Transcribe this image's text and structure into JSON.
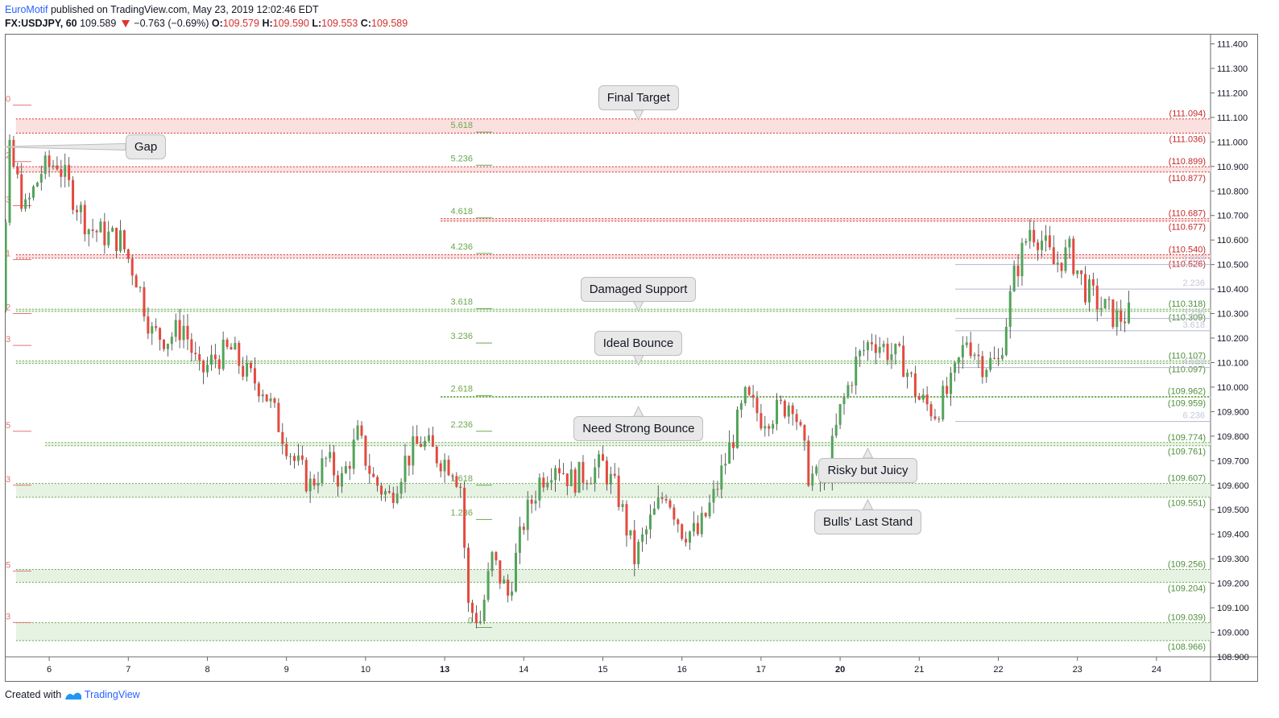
{
  "header": {
    "author": "EuroMotif",
    "published_text": "published on TradingView.com, May 23, 2019 12:02:46 EDT",
    "symbol": "FX:USDJPY, 60",
    "price": "109.589",
    "change": "−0.763 (−0.69%)",
    "open_label": "O:",
    "open": "109.579",
    "high_label": "H:",
    "high": "109.590",
    "low_label": "L:",
    "low": "109.553",
    "close_label": "C:",
    "close": "109.589"
  },
  "footer": {
    "created_with": "Created with",
    "brand": "TradingView"
  },
  "colors": {
    "up": "#53a35a",
    "down": "#e34a3f",
    "red_zone": "#fbe0e0",
    "green_zone": "#e6f3e3",
    "red_line": "#d43232",
    "green_line": "#6aa84f",
    "fib_text": "#6aa84f",
    "grey_fib": "#b5b5cf"
  },
  "chart_data": {
    "type": "candlestick",
    "instrument": "FX:USDJPY",
    "timeframe": "60",
    "ylim": [
      108.9,
      111.4
    ],
    "y_ticks": [
      "111.400",
      "111.300",
      "111.200",
      "111.100",
      "111.000",
      "110.900",
      "110.800",
      "110.700",
      "110.600",
      "110.500",
      "110.400",
      "110.300",
      "110.200",
      "110.100",
      "110.000",
      "109.900",
      "109.800",
      "109.700",
      "109.600",
      "109.500",
      "109.400",
      "109.300",
      "109.200",
      "109.100",
      "109.000",
      "108.900"
    ],
    "x_ticks": [
      {
        "label": "6",
        "x": 0.5,
        "bold": false
      },
      {
        "label": "7",
        "x": 1.5,
        "bold": false
      },
      {
        "label": "8",
        "x": 2.5,
        "bold": false
      },
      {
        "label": "9",
        "x": 3.5,
        "bold": false
      },
      {
        "label": "10",
        "x": 4.5,
        "bold": false
      },
      {
        "label": "13",
        "x": 5.5,
        "bold": true
      },
      {
        "label": "14",
        "x": 6.5,
        "bold": false
      },
      {
        "label": "15",
        "x": 7.5,
        "bold": false
      },
      {
        "label": "16",
        "x": 8.5,
        "bold": false
      },
      {
        "label": "17",
        "x": 9.5,
        "bold": false
      },
      {
        "label": "20",
        "x": 10.5,
        "bold": true
      },
      {
        "label": "21",
        "x": 11.5,
        "bold": false
      },
      {
        "label": "22",
        "x": 12.5,
        "bold": false
      },
      {
        "label": "23",
        "x": 13.5,
        "bold": false
      },
      {
        "label": "24",
        "x": 14.5,
        "bold": false
      }
    ],
    "price_path": [
      [
        -0.5,
        111.3
      ],
      [
        -0.3,
        111.07
      ],
      [
        -0.25,
        110.72
      ],
      [
        -0.1,
        110.35
      ],
      [
        0.0,
        110.95
      ],
      [
        0.2,
        110.72
      ],
      [
        0.4,
        110.88
      ],
      [
        0.6,
        110.92
      ],
      [
        0.8,
        110.78
      ],
      [
        1.0,
        110.65
      ],
      [
        1.2,
        110.62
      ],
      [
        1.4,
        110.6
      ],
      [
        1.6,
        110.45
      ],
      [
        1.8,
        110.22
      ],
      [
        2.0,
        110.2
      ],
      [
        2.2,
        110.25
      ],
      [
        2.4,
        110.05
      ],
      [
        2.6,
        110.12
      ],
      [
        2.8,
        110.15
      ],
      [
        3.0,
        110.05
      ],
      [
        3.2,
        110.0
      ],
      [
        3.4,
        109.85
      ],
      [
        3.6,
        109.7
      ],
      [
        3.8,
        109.6
      ],
      [
        4.0,
        109.7
      ],
      [
        4.2,
        109.62
      ],
      [
        4.4,
        109.8
      ],
      [
        4.6,
        109.62
      ],
      [
        4.8,
        109.55
      ],
      [
        5.0,
        109.7
      ],
      [
        5.2,
        109.78
      ],
      [
        5.4,
        109.72
      ],
      [
        5.6,
        109.68
      ],
      [
        5.7,
        109.6
      ],
      [
        5.8,
        109.1
      ],
      [
        5.95,
        109.05
      ],
      [
        6.1,
        109.3
      ],
      [
        6.3,
        109.15
      ],
      [
        6.5,
        109.45
      ],
      [
        6.7,
        109.62
      ],
      [
        6.9,
        109.7
      ],
      [
        7.1,
        109.62
      ],
      [
        7.3,
        109.65
      ],
      [
        7.5,
        109.68
      ],
      [
        7.7,
        109.55
      ],
      [
        7.9,
        109.3
      ],
      [
        8.1,
        109.45
      ],
      [
        8.3,
        109.58
      ],
      [
        8.5,
        109.42
      ],
      [
        8.7,
        109.4
      ],
      [
        8.9,
        109.55
      ],
      [
        9.1,
        109.75
      ],
      [
        9.3,
        109.95
      ],
      [
        9.5,
        109.88
      ],
      [
        9.7,
        109.9
      ],
      [
        9.9,
        109.95
      ],
      [
        10.1,
        109.65
      ],
      [
        10.3,
        109.6
      ],
      [
        10.5,
        109.9
      ],
      [
        10.7,
        110.1
      ],
      [
        10.9,
        110.2
      ],
      [
        11.1,
        110.15
      ],
      [
        11.3,
        110.1
      ],
      [
        11.5,
        109.95
      ],
      [
        11.7,
        109.9
      ],
      [
        11.9,
        110.0
      ],
      [
        12.1,
        110.2
      ],
      [
        12.3,
        110.1
      ],
      [
        12.5,
        110.1
      ],
      [
        12.7,
        110.45
      ],
      [
        12.9,
        110.65
      ],
      [
        13.05,
        110.6
      ],
      [
        13.2,
        110.5
      ],
      [
        13.4,
        110.55
      ],
      [
        13.6,
        110.4
      ],
      [
        13.8,
        110.33
      ],
      [
        14.0,
        110.28
      ],
      [
        14.2,
        110.3
      ],
      [
        14.4,
        110.25
      ],
      [
        14.6,
        110.3
      ],
      [
        14.8,
        110.2
      ],
      [
        15.0,
        109.98
      ],
      [
        15.2,
        109.8
      ],
      [
        15.3,
        109.6
      ],
      [
        15.45,
        109.58
      ]
    ],
    "zones": [
      {
        "color": "red",
        "top": 111.094,
        "bottom": 111.036,
        "label_top": "(111.094)",
        "label_bottom": "(111.036)",
        "start_x": 0.08
      },
      {
        "color": "red",
        "top": 110.899,
        "bottom": 110.877,
        "label_top": "(110.899)",
        "label_bottom": "(110.877)",
        "start_x": 0.08
      },
      {
        "color": "red",
        "top": 110.687,
        "bottom": 110.677,
        "label_top": "(110.687)",
        "label_bottom": "(110.677)",
        "start_x": 5.45
      },
      {
        "color": "red",
        "top": 110.54,
        "bottom": 110.526,
        "label_top": "(110.540)",
        "label_bottom": "(110.526)",
        "start_x": 0.08
      },
      {
        "color": "green",
        "top": 110.318,
        "bottom": 110.309,
        "label_top": "(110.318)",
        "label_bottom": "(110.309)",
        "start_x": 0.08
      },
      {
        "color": "green",
        "top": 110.107,
        "bottom": 110.097,
        "label_top": "(110.107)",
        "label_bottom": "(110.097)",
        "start_x": 0.08
      },
      {
        "color": "green",
        "top": 109.962,
        "bottom": 109.959,
        "label_top": "(109.962)",
        "label_bottom": "(109.959)",
        "start_x": 5.45
      },
      {
        "color": "green",
        "top": 109.774,
        "bottom": 109.761,
        "label_top": "(109.774)",
        "label_bottom": "(109.761)",
        "start_x": 0.45
      },
      {
        "color": "green",
        "top": 109.607,
        "bottom": 109.551,
        "label_top": "(109.607)",
        "label_bottom": "(109.551)",
        "start_x": 0.08
      },
      {
        "color": "green",
        "top": 109.256,
        "bottom": 109.204,
        "label_top": "(109.256)",
        "label_bottom": "(109.204)",
        "start_x": 0.08
      },
      {
        "color": "green",
        "top": 109.039,
        "bottom": 108.966,
        "label_top": "(109.039)",
        "label_bottom": "(108.966)",
        "start_x": 0.08
      }
    ],
    "fib_main": [
      {
        "label": "5.618",
        "price": 111.04
      },
      {
        "label": "5.236",
        "price": 110.905
      },
      {
        "label": "4.618",
        "price": 110.69
      },
      {
        "label": "4.236",
        "price": 110.545
      },
      {
        "label": "3.618",
        "price": 110.32
      },
      {
        "label": "3.236",
        "price": 110.18
      },
      {
        "label": "2.618",
        "price": 109.965
      },
      {
        "label": "2.236",
        "price": 109.82
      },
      {
        "label": "1.618",
        "price": 109.6
      },
      {
        "label": "1.236",
        "price": 109.46
      },
      {
        "label": "0",
        "price": 109.02
      }
    ],
    "fib_left": [
      {
        "label": "0",
        "price": 111.15
      },
      {
        "label": "2",
        "price": 110.92
      },
      {
        "label": "3",
        "price": 110.74
      },
      {
        "label": "1",
        "price": 110.52
      },
      {
        "label": "2",
        "price": 110.3
      },
      {
        "label": "3",
        "price": 110.17
      },
      {
        "label": "5",
        "price": 109.82
      },
      {
        "label": "3",
        "price": 109.6
      },
      {
        "label": "5",
        "price": 109.25
      },
      {
        "label": "3",
        "price": 109.04
      }
    ],
    "fib_right": [
      {
        "label": "1.618",
        "price": 110.5
      },
      {
        "label": "2.236",
        "price": 110.4
      },
      {
        "label": "3.236",
        "price": 110.28
      },
      {
        "label": "3.618",
        "price": 110.23
      },
      {
        "label": "4.618",
        "price": 110.08
      },
      {
        "label": "6.236",
        "price": 109.86
      }
    ],
    "annotations": [
      {
        "text": "Final Target",
        "x": 7.95,
        "price": 111.18,
        "pointer": "down"
      },
      {
        "text": "Gap",
        "x": 1.72,
        "price": 110.98,
        "pointer": "left"
      },
      {
        "text": "Damaged Support",
        "x": 7.95,
        "price": 110.4,
        "pointer": "down"
      },
      {
        "text": "Ideal Bounce",
        "x": 7.95,
        "price": 110.18,
        "pointer": "down"
      },
      {
        "text": "Need Strong Bounce",
        "x": 7.95,
        "price": 109.83,
        "pointer": "up"
      },
      {
        "text": "Risky but Juicy",
        "x": 10.85,
        "price": 109.66,
        "pointer": "up"
      },
      {
        "text": "Bulls' Last Stand",
        "x": 10.85,
        "price": 109.45,
        "pointer": "up"
      }
    ]
  }
}
